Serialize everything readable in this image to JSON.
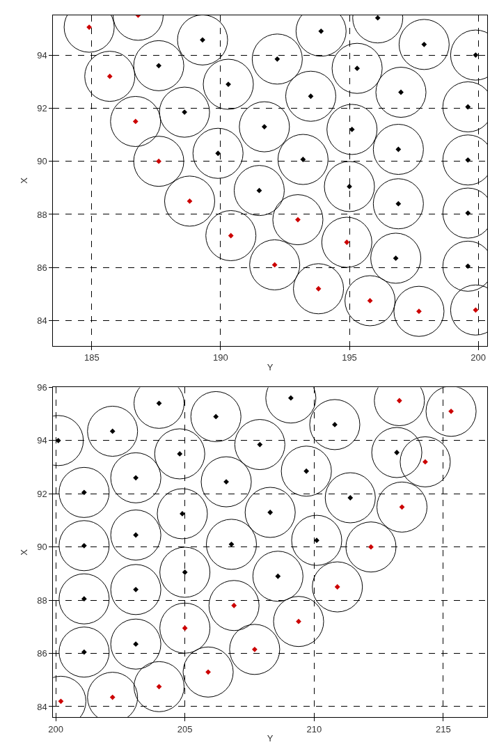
{
  "chart_data": [
    {
      "type": "scatter",
      "xlabel": "Y",
      "ylabel": "X",
      "xlim": [
        183.5,
        200.35
      ],
      "ylim": [
        83.05,
        95.5
      ],
      "xticks": [
        185,
        190,
        195,
        200
      ],
      "yticks": [
        84,
        86,
        88,
        90,
        92,
        94
      ],
      "grid": true,
      "marker": "diamond",
      "series": [
        {
          "color": "#000000",
          "x": [
            189.3,
            193.9,
            196.1,
            197.9,
            199.9,
            187.6,
            192.2,
            195.3,
            190.3,
            193.5,
            197.0,
            199.6,
            188.6,
            191.7,
            195.1,
            189.9,
            193.2,
            196.9,
            199.6,
            191.5,
            195.0,
            196.9,
            199.6,
            196.8,
            199.6
          ],
          "values": [
            94.57,
            94.9,
            95.4,
            94.4,
            94.0,
            93.6,
            93.85,
            93.5,
            92.9,
            92.45,
            92.6,
            92.05,
            91.85,
            91.3,
            91.2,
            90.3,
            90.07,
            90.45,
            90.05,
            88.9,
            89.05,
            88.4,
            88.05,
            86.35,
            86.05
          ]
        },
        {
          "color": "#cc0000",
          "x": [
            184.9,
            186.8,
            185.7,
            186.7,
            187.6,
            188.8,
            193.0,
            190.4,
            194.9,
            192.1,
            193.8,
            195.8,
            197.7,
            199.9
          ],
          "values": [
            95.05,
            95.5,
            93.2,
            91.5,
            90.0,
            88.5,
            87.8,
            87.2,
            86.95,
            86.1,
            85.2,
            84.75,
            84.35,
            84.4
          ]
        }
      ]
    },
    {
      "type": "scatter",
      "xlabel": "Y",
      "ylabel": "X",
      "xlim": [
        199.9,
        216.7
      ],
      "ylim": [
        83.6,
        96
      ],
      "xticks": [
        200,
        205,
        210,
        215
      ],
      "yticks": [
        84,
        86,
        88,
        90,
        92,
        94,
        96
      ],
      "grid": true,
      "marker": "diamond",
      "series": [
        {
          "color": "#000000",
          "x": [
            200.1,
            202.2,
            204.0,
            206.2,
            209.1,
            210.8,
            201.1,
            203.1,
            204.8,
            206.6,
            207.9,
            209.7,
            213.2,
            201.1,
            203.1,
            204.9,
            206.8,
            208.3,
            210.1,
            211.4,
            201.1,
            203.1,
            205.0,
            208.6,
            201.1,
            203.1
          ],
          "values": [
            94.0,
            94.35,
            95.4,
            94.9,
            95.6,
            94.6,
            92.05,
            92.6,
            93.5,
            92.45,
            93.85,
            92.85,
            93.55,
            90.05,
            90.45,
            91.25,
            90.1,
            91.3,
            90.25,
            91.85,
            88.05,
            88.4,
            89.05,
            88.9,
            86.05,
            86.35
          ]
        },
        {
          "color": "#cc0000",
          "x": [
            213.3,
            215.3,
            214.3,
            213.4,
            212.2,
            210.9,
            209.4,
            206.9,
            207.7,
            205.0,
            205.9,
            204.0,
            202.2,
            200.2
          ],
          "values": [
            95.5,
            95.1,
            93.2,
            91.5,
            90.0,
            88.5,
            87.2,
            87.8,
            86.15,
            86.95,
            85.3,
            84.75,
            84.35,
            84.2
          ]
        }
      ]
    }
  ]
}
